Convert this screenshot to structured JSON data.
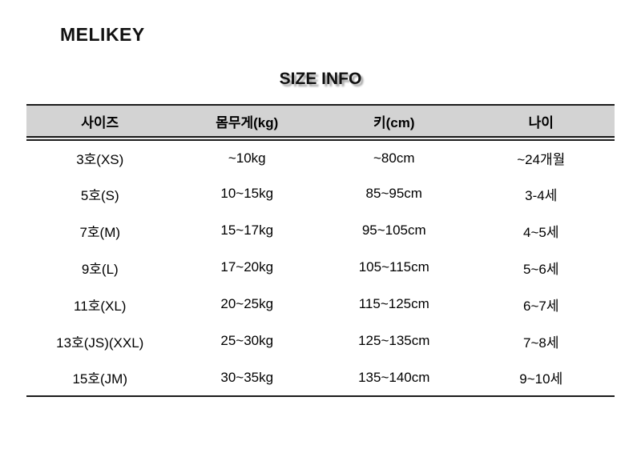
{
  "brand": "MELIKEY",
  "title": "SIZE INFO",
  "colors": {
    "header_bg": "#d3d3d3",
    "border": "#1a1a1a",
    "title_shadow": "#a6a6a6",
    "text": "#000000",
    "background": "#ffffff"
  },
  "table": {
    "headers": [
      "사이즈",
      "몸무게(kg)",
      "키(cm)",
      "나이"
    ],
    "rows": [
      [
        "3호(XS)",
        "~10kg",
        "~80cm",
        "~24개월"
      ],
      [
        "5호(S)",
        "10~15kg",
        "85~95cm",
        "3-4세"
      ],
      [
        "7호(M)",
        "15~17kg",
        "95~105cm",
        "4~5세"
      ],
      [
        "9호(L)",
        "17~20kg",
        "105~115cm",
        "5~6세"
      ],
      [
        "11호(XL)",
        "20~25kg",
        "115~125cm",
        "6~7세"
      ],
      [
        "13호(JS)(XXL)",
        "25~30kg",
        "125~135cm",
        "7~8세"
      ],
      [
        "15호(JM)",
        "30~35kg",
        "135~140cm",
        "9~10세"
      ]
    ]
  }
}
